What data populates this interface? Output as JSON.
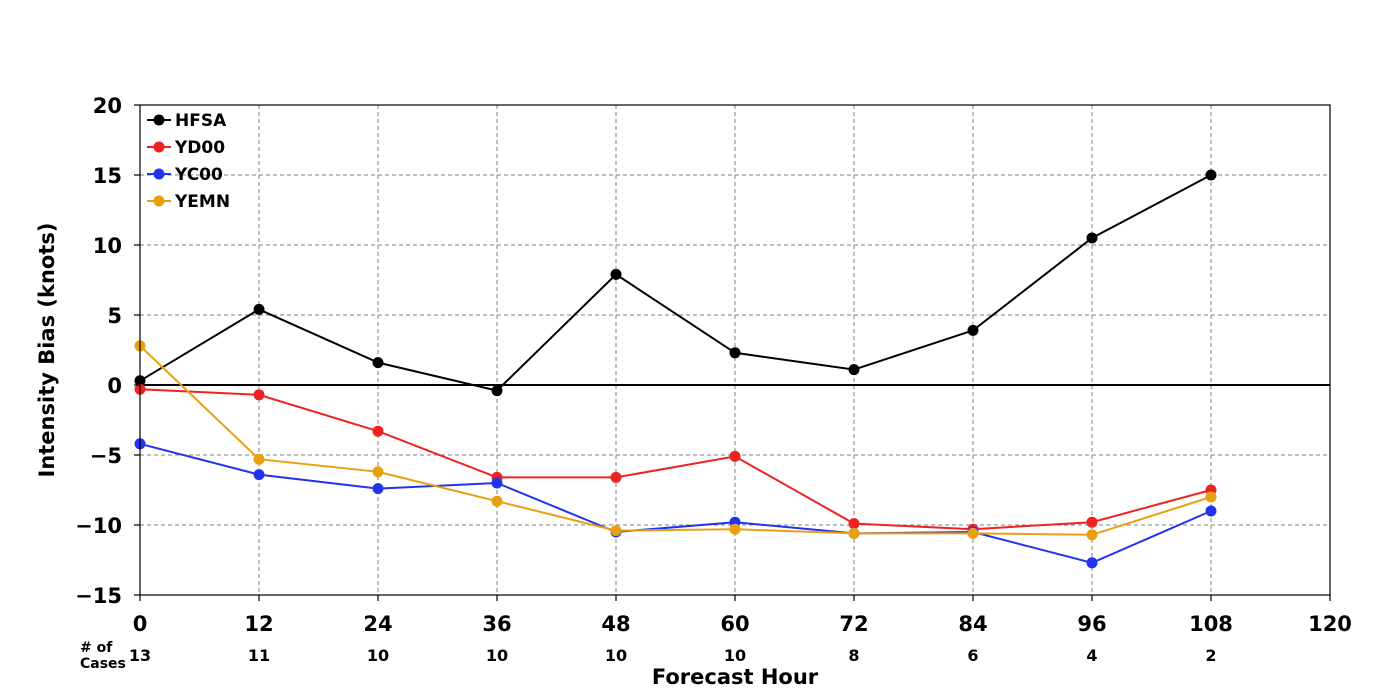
{
  "chart_data": {
    "type": "line",
    "xlabel": "Forecast Hour",
    "ylabel": "Intensity Bias (knots)",
    "xlim": [
      0,
      120
    ],
    "ylim": [
      -15,
      20
    ],
    "xticks": [
      0,
      12,
      24,
      36,
      48,
      60,
      72,
      84,
      96,
      108,
      120
    ],
    "yticks": [
      -15,
      -10,
      -5,
      0,
      5,
      10,
      15,
      20
    ],
    "xtick_labels": [
      "0",
      "12",
      "24",
      "36",
      "48",
      "60",
      "72",
      "84",
      "96",
      "108",
      "120"
    ],
    "ytick_labels": [
      "−15",
      "−10",
      "−5",
      "0",
      "5",
      "10",
      "15",
      "20"
    ],
    "grid": true,
    "legend_position": "top-left",
    "x": [
      0,
      12,
      24,
      36,
      48,
      60,
      72,
      84,
      96,
      108
    ],
    "series": [
      {
        "name": "HFSA",
        "color": "#000000",
        "values": [
          0.3,
          5.4,
          1.6,
          -0.4,
          7.9,
          2.3,
          1.1,
          3.9,
          10.5,
          15.0
        ]
      },
      {
        "name": "YD00",
        "color": "#ee2222",
        "values": [
          -0.3,
          -0.7,
          -3.3,
          -6.6,
          -6.6,
          -5.1,
          -9.9,
          -10.3,
          -9.8,
          -7.5
        ]
      },
      {
        "name": "YC00",
        "color": "#2233ee",
        "values": [
          -4.2,
          -6.4,
          -7.4,
          -7.0,
          -10.5,
          -9.8,
          -10.6,
          -10.5,
          -12.7,
          -9.0
        ]
      },
      {
        "name": "YEMN",
        "color": "#e8a010",
        "values": [
          2.8,
          -5.3,
          -6.2,
          -8.3,
          -10.4,
          -10.3,
          -10.6,
          -10.6,
          -10.7,
          -8.0
        ]
      }
    ],
    "cases": {
      "label_line1": "# of",
      "label_line2": "Cases",
      "x": [
        0,
        12,
        24,
        36,
        48,
        60,
        72,
        84,
        96,
        108
      ],
      "values": [
        "13",
        "11",
        "10",
        "10",
        "10",
        "10",
        "8",
        "6",
        "4",
        "2"
      ]
    }
  }
}
